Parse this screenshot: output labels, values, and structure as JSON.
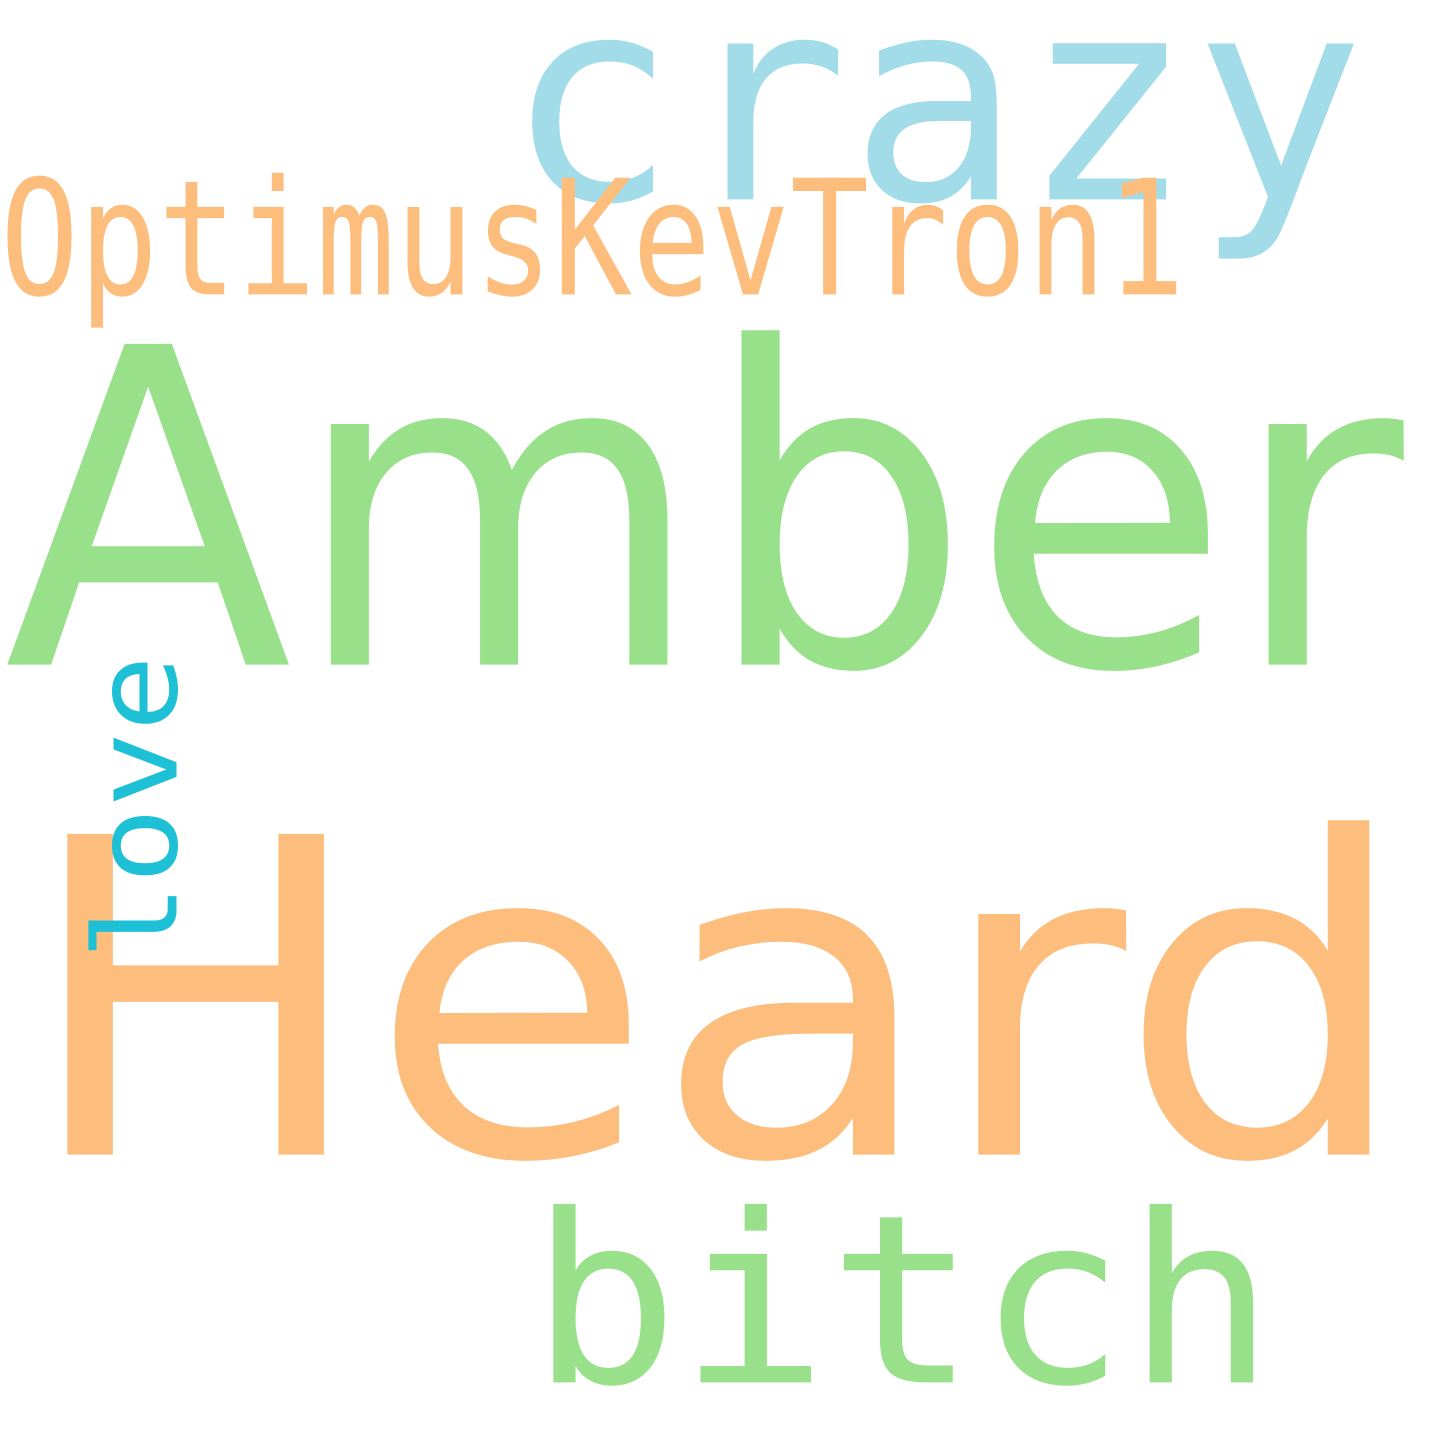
{
  "words": [
    {
      "id": "amber",
      "text": "Amber",
      "color": "#98e08a",
      "vertical": false,
      "font": "sans"
    },
    {
      "id": "heard",
      "text": "Heard",
      "color": "#fdbd7d",
      "vertical": false,
      "font": "sans"
    },
    {
      "id": "crazy",
      "text": "crazy",
      "color": "#a2dce8",
      "vertical": false,
      "font": "mono"
    },
    {
      "id": "optimuskevtron1",
      "text": "OptimusKevTron1",
      "color": "#fdbd7d",
      "vertical": false,
      "font": "mono"
    },
    {
      "id": "bitch",
      "text": "bitch",
      "color": "#98e08a",
      "vertical": false,
      "font": "mono"
    },
    {
      "id": "love",
      "text": "love",
      "color": "#1ec0d6",
      "vertical": true,
      "font": "mono"
    }
  ]
}
